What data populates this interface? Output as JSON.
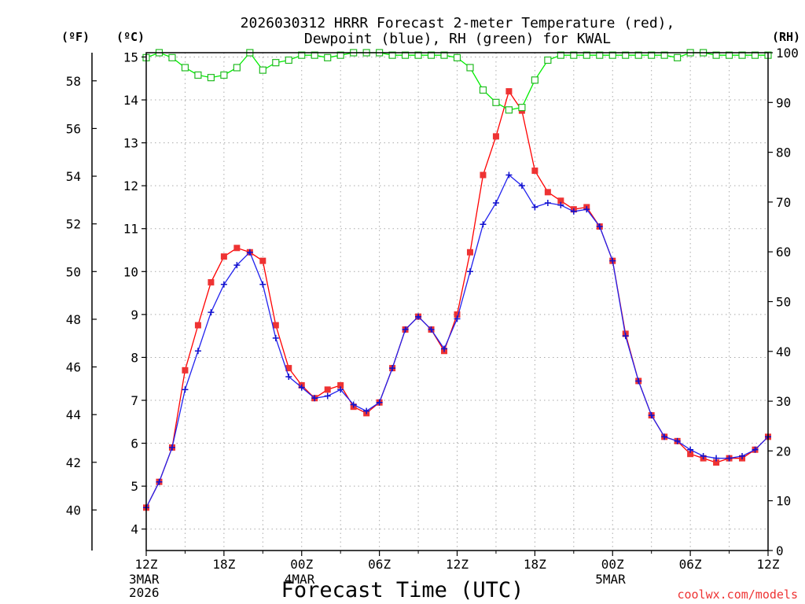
{
  "title_lines": [
    "2026030312 HRRR Forecast 2-meter Temperature (red),",
    "Dewpoint (blue), RH (green) for KWAL"
  ],
  "units": {
    "fahrenheit": "(ºF)",
    "celsius": "(ºC)",
    "rh": "(RH)"
  },
  "xlabel": "Forecast Time (UTC)",
  "credit": "coolwx.com/models",
  "colors": {
    "temperature": "#ff0000",
    "temperature_marker": "#ee3333",
    "dewpoint": "#2222ee",
    "dewpoint_marker": "#1111cc",
    "rh": "#00ee00",
    "rh_marker": "#22bb22",
    "grid": "#aaaaaa",
    "axis": "#000000",
    "credit": "#ee3333"
  },
  "chart_data": {
    "type": "line",
    "x_hours": [
      0,
      1,
      2,
      3,
      4,
      5,
      6,
      7,
      8,
      9,
      10,
      11,
      12,
      13,
      14,
      15,
      16,
      17,
      18,
      19,
      20,
      21,
      22,
      23,
      24,
      25,
      26,
      27,
      28,
      29,
      30,
      31,
      32,
      33,
      34,
      35,
      36,
      37,
      38,
      39,
      40,
      41,
      42,
      43,
      44,
      45,
      46,
      47,
      48
    ],
    "xlim": [
      0,
      48
    ],
    "x_tick_hours": [
      0,
      6,
      12,
      18,
      24,
      30,
      36,
      42,
      48
    ],
    "x_tick_labels": [
      "12Z",
      "18Z",
      "00Z",
      "06Z",
      "12Z",
      "18Z",
      "00Z",
      "06Z",
      "12Z"
    ],
    "date_labels": [
      {
        "hour": 0,
        "lines": [
          "3MAR",
          "2026"
        ]
      },
      {
        "hour": 12,
        "lines": [
          "4MAR"
        ]
      },
      {
        "hour": 36,
        "lines": [
          "5MAR"
        ]
      }
    ],
    "celsius_axis": {
      "ylim": [
        3.5,
        15.1
      ],
      "ticks": [
        4,
        5,
        6,
        7,
        8,
        9,
        10,
        11,
        12,
        13,
        14,
        15
      ]
    },
    "fahrenheit_ticks": [
      40,
      42,
      44,
      46,
      48,
      50,
      52,
      54,
      56,
      58
    ],
    "rh_axis": {
      "ylim": [
        0,
        100
      ],
      "ticks": [
        0,
        10,
        20,
        30,
        40,
        50,
        60,
        70,
        80,
        90,
        100
      ]
    },
    "series": [
      {
        "name": "2-meter Temperature",
        "axis": "celsius",
        "color_key": "temperature",
        "marker": "square",
        "values": [
          4.5,
          5.1,
          5.9,
          7.7,
          8.75,
          9.75,
          10.35,
          10.55,
          10.45,
          10.25,
          8.75,
          7.75,
          7.35,
          7.05,
          7.25,
          7.35,
          6.85,
          6.7,
          6.95,
          7.75,
          8.65,
          8.95,
          8.65,
          8.15,
          9.0,
          10.45,
          12.25,
          13.15,
          14.2,
          13.75,
          12.35,
          11.85,
          11.65,
          11.45,
          11.5,
          11.05,
          10.25,
          8.55,
          7.45,
          6.65,
          6.15,
          6.05,
          5.75,
          5.65,
          5.55,
          5.65,
          5.65,
          5.85,
          6.15
        ]
      },
      {
        "name": "Dewpoint",
        "axis": "celsius",
        "color_key": "dewpoint",
        "marker": "plus",
        "values": [
          4.5,
          5.1,
          5.9,
          7.25,
          8.15,
          9.05,
          9.7,
          10.15,
          10.45,
          9.7,
          8.45,
          7.55,
          7.3,
          7.05,
          7.1,
          7.25,
          6.9,
          6.75,
          6.95,
          7.75,
          8.65,
          8.95,
          8.65,
          8.2,
          8.9,
          10.0,
          11.1,
          11.6,
          12.25,
          12.0,
          11.5,
          11.6,
          11.55,
          11.4,
          11.45,
          11.05,
          10.25,
          8.5,
          7.45,
          6.65,
          6.15,
          6.05,
          5.85,
          5.7,
          5.65,
          5.65,
          5.7,
          5.85,
          6.15
        ]
      },
      {
        "name": "Relative Humidity",
        "axis": "rh",
        "color_key": "rh",
        "marker": "open-square",
        "values": [
          99,
          100,
          99,
          97,
          95.5,
          95,
          95.5,
          97,
          100,
          96.5,
          98,
          98.5,
          99.5,
          99.5,
          99,
          99.5,
          100,
          100,
          100,
          99.5,
          99.5,
          99.5,
          99.5,
          99.5,
          99,
          97,
          92.5,
          90,
          88.5,
          89,
          94.5,
          98.5,
          99.5,
          99.5,
          99.5,
          99.5,
          99.5,
          99.5,
          99.5,
          99.5,
          99.5,
          99,
          100,
          100,
          99.5,
          99.5,
          99.5,
          99.5,
          99.5
        ]
      }
    ]
  }
}
